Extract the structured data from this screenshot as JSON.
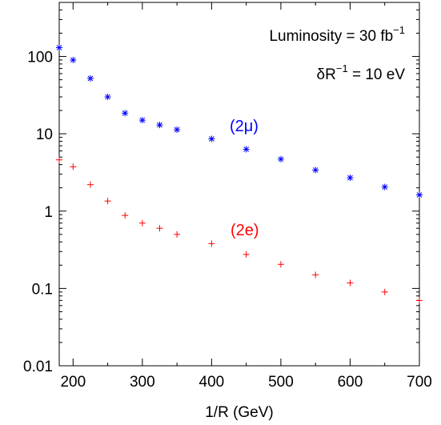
{
  "chart_data": {
    "type": "scatter",
    "title": "",
    "xlabel": "1/R (GeV)",
    "ylabel": "",
    "xlim": [
      180,
      700
    ],
    "ylim": [
      0.01,
      500
    ],
    "yscale": "log",
    "grid": false,
    "x_ticks": [
      200,
      300,
      400,
      500,
      600,
      700
    ],
    "y_ticks": [
      {
        "value": 0.01,
        "label": "0.01"
      },
      {
        "value": 0.1,
        "label": "0.1"
      },
      {
        "value": 1,
        "label": "1"
      },
      {
        "value": 10,
        "label": "10"
      },
      {
        "value": 100,
        "label": "100"
      }
    ],
    "annotations": [
      {
        "id": "lumi",
        "text": "Luminosity = 30 fb",
        "sup": "−1"
      },
      {
        "id": "dr",
        "text": "δR",
        "sup": "−1",
        "suffix": " = 10 eV"
      }
    ],
    "series": [
      {
        "name": "(2μ)",
        "marker": "asterisk",
        "color": "#0000ff",
        "x": [
          180,
          200,
          225,
          250,
          275,
          300,
          325,
          350,
          400,
          450,
          500,
          550,
          600,
          650,
          700
        ],
        "y": [
          130,
          90,
          52,
          30,
          18.5,
          15,
          13,
          11.3,
          8.6,
          6.3,
          4.7,
          3.4,
          2.7,
          2.05,
          1.62
        ]
      },
      {
        "name": "(2e)",
        "marker": "plus",
        "color": "#ff0000",
        "x": [
          180,
          200,
          225,
          250,
          275,
          300,
          325,
          350,
          400,
          450,
          500,
          550,
          600,
          650,
          700
        ],
        "y": [
          4.6,
          3.75,
          2.2,
          1.35,
          0.88,
          0.7,
          0.6,
          0.5,
          0.38,
          0.275,
          0.205,
          0.15,
          0.118,
          0.09,
          0.07
        ]
      }
    ]
  }
}
